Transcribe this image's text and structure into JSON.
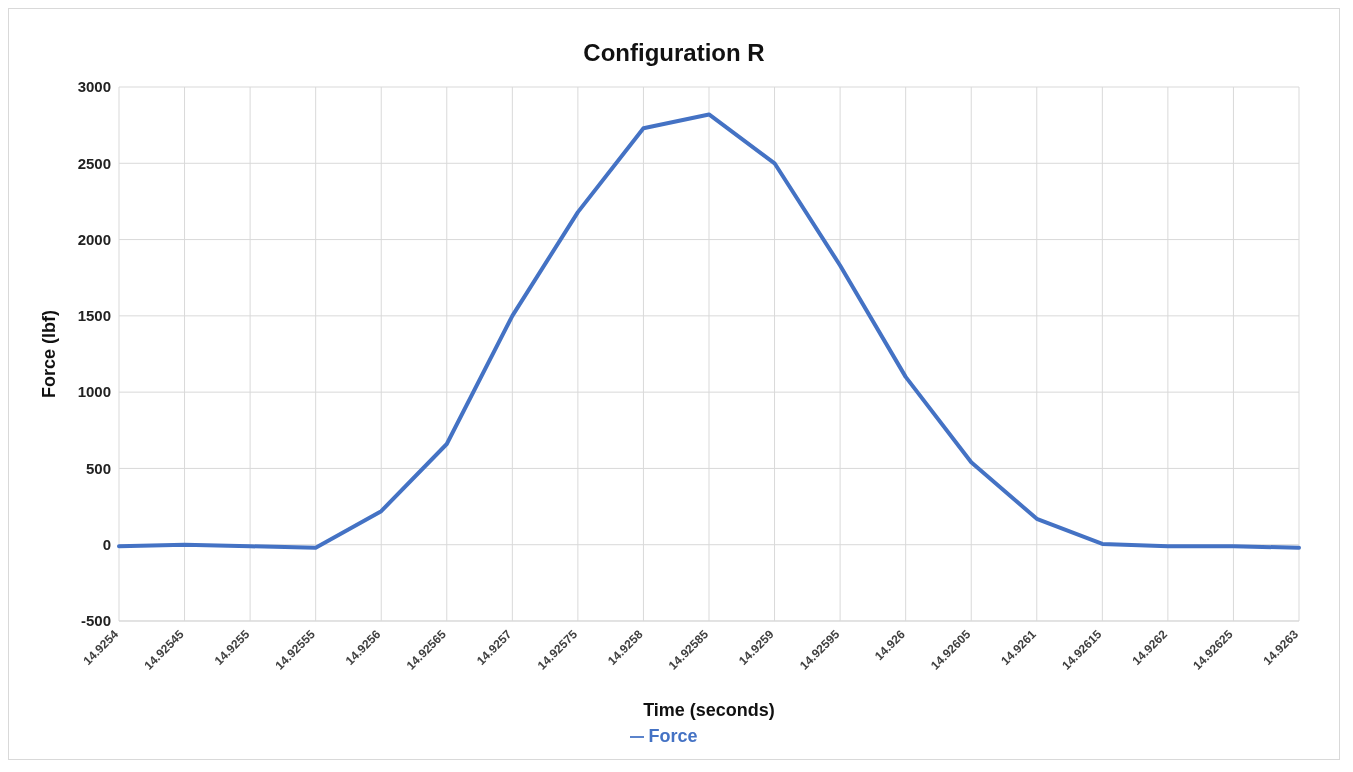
{
  "chart_data": {
    "type": "line",
    "title": "Configuration R",
    "xlabel": "Time (seconds)",
    "ylabel": "Force (lbf)",
    "categories": [
      "14.9254",
      "14.92545",
      "14.9255",
      "14.92555",
      "14.9256",
      "14.92565",
      "14.9257",
      "14.92575",
      "14.9258",
      "14.92585",
      "14.9259",
      "14.92595",
      "14.926",
      "14.92605",
      "14.9261",
      "14.92615",
      "14.9262",
      "14.92625",
      "14.9263"
    ],
    "series": [
      {
        "name": "Force",
        "color": "#4472c4",
        "values": [
          -10,
          0,
          -10,
          -20,
          220,
          660,
          1500,
          2180,
          2730,
          2820,
          2500,
          1830,
          1100,
          540,
          170,
          5,
          -10,
          -10,
          -20
        ]
      }
    ],
    "ylim": [
      -500,
      3000
    ],
    "yticks": [
      -500,
      0,
      500,
      1000,
      1500,
      2000,
      2500,
      3000
    ],
    "grid": true,
    "legend": "bottom",
    "marker": "none",
    "line_style": "solid"
  }
}
